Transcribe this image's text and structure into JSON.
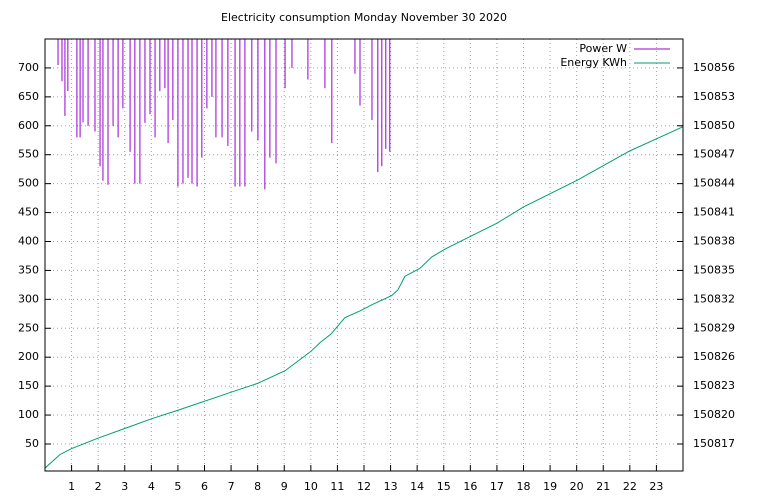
{
  "chart_data": {
    "type": "line",
    "title": "Electricity consumption Monday November 30 2020",
    "xlim": [
      0,
      24
    ],
    "xticks": [
      1,
      2,
      3,
      4,
      5,
      6,
      7,
      8,
      9,
      10,
      11,
      12,
      13,
      14,
      15,
      16,
      17,
      18,
      19,
      20,
      21,
      22,
      23
    ],
    "ylim": [
      3.3,
      750
    ],
    "yticks": [
      50,
      100,
      150,
      200,
      250,
      300,
      350,
      400,
      450,
      500,
      550,
      600,
      650,
      700
    ],
    "y2lim": [
      150814.2,
      150859
    ],
    "y2ticks": [
      150817,
      150820,
      150823,
      150826,
      150829,
      150832,
      150835,
      150838,
      150841,
      150844,
      150847,
      150850,
      150853,
      150856
    ],
    "grid": true,
    "legend": "top-right",
    "series": [
      {
        "name": "Power W",
        "color": "#9400d3",
        "style": "impulses",
        "x": [
          0.49,
          0.64,
          0.75,
          0.86,
          1.2,
          1.32,
          1.43,
          1.62,
          1.88,
          2.07,
          2.18,
          2.37,
          2.56,
          2.75,
          2.93,
          3.2,
          3.38,
          3.57,
          3.76,
          3.95,
          4.14,
          4.32,
          4.51,
          4.63,
          4.81,
          5.0,
          5.19,
          5.38,
          5.53,
          5.72,
          5.9,
          6.09,
          6.28,
          6.43,
          6.66,
          6.88,
          7.15,
          7.33,
          7.52,
          7.78,
          8.01,
          8.27,
          8.46,
          8.69,
          9.03,
          9.29,
          9.89,
          10.53,
          10.79,
          11.66,
          11.85,
          12.3,
          12.52,
          12.67,
          12.82,
          12.97
        ],
        "values": [
          705,
          677,
          617,
          660,
          580,
          580,
          606,
          600,
          590,
          530,
          505,
          498,
          600,
          580,
          630,
          555,
          500,
          500,
          605,
          620,
          580,
          660,
          665,
          570,
          610,
          495,
          500,
          510,
          500,
          495,
          545,
          630,
          650,
          580,
          580,
          565,
          495,
          495,
          495,
          590,
          575,
          490,
          545,
          535,
          665,
          700,
          680,
          665,
          570,
          690,
          635,
          610,
          520,
          530,
          560,
          555
        ]
      },
      {
        "name": "Energy KWh",
        "color": "#009e73",
        "axis": "y2",
        "x": [
          0,
          0.56,
          0.98,
          1.99,
          3.99,
          5.0,
          7.03,
          8.01,
          9.03,
          10.0,
          10.34,
          10.76,
          11.28,
          11.85,
          12.34,
          13.05,
          13.28,
          13.54,
          14.1,
          14.55,
          15.04,
          15.98,
          17.0,
          18.01,
          19.03,
          20.05,
          22.0,
          24
        ],
        "values": [
          150814.5,
          150815.9,
          150816.5,
          150817.6,
          150819.6,
          150820.5,
          150822.4,
          150823.3,
          150824.6,
          150826.6,
          150827.5,
          150828.4,
          150830.1,
          150830.8,
          150831.5,
          150832.4,
          150833.0,
          150834.4,
          150835.2,
          150836.4,
          150837.2,
          150838.5,
          150839.9,
          150841.6,
          150843.0,
          150844.4,
          150847.4,
          150849.9
        ]
      }
    ]
  }
}
